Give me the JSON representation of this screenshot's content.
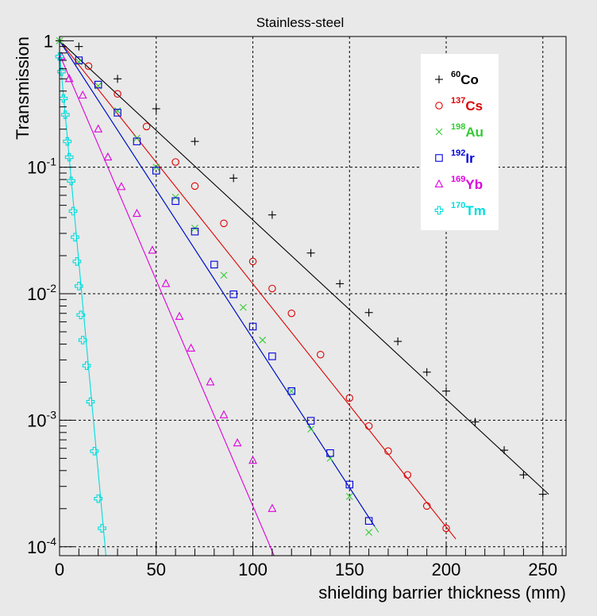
{
  "chart_data": {
    "type": "scatter",
    "title": "Stainless-steel",
    "xlabel": "shielding barrier thickness (mm)",
    "ylabel": "Transmission",
    "xlim": [
      0,
      262
    ],
    "ylim": [
      8.5e-05,
      1.08
    ],
    "y_scale": "log",
    "grid": true,
    "legend_position": "top-right",
    "x_ticks": [
      0,
      50,
      100,
      150,
      200,
      250
    ],
    "y_ticks": [
      {
        "value": 1,
        "label": "1",
        "base": "",
        "exp": ""
      },
      {
        "value": 0.1,
        "label": "",
        "base": "10",
        "exp": "-1"
      },
      {
        "value": 0.01,
        "label": "",
        "base": "10",
        "exp": "-2"
      },
      {
        "value": 0.001,
        "label": "",
        "base": "10",
        "exp": "-3"
      },
      {
        "value": 0.0001,
        "label": "",
        "base": "10",
        "exp": "-4"
      }
    ],
    "series": [
      {
        "name": "Co",
        "mass": "60",
        "color": "#000000",
        "marker": "plus",
        "x": [
          0,
          10,
          30,
          50,
          70,
          90,
          110,
          130,
          145,
          160,
          175,
          190,
          200,
          215,
          230,
          240,
          250
        ],
        "y": [
          1,
          0.9,
          0.5,
          0.29,
          0.16,
          0.082,
          0.042,
          0.021,
          0.012,
          0.0071,
          0.0042,
          0.0024,
          0.0017,
          0.00097,
          0.00058,
          0.00037,
          0.00026
        ],
        "fit_x": [
          0,
          253
        ],
        "fit_y": [
          1.0,
          0.00026
        ]
      },
      {
        "name": "Cs",
        "mass": "137",
        "color": "#dd0000",
        "marker": "circle",
        "x": [
          15,
          30,
          45,
          60,
          70,
          85,
          100,
          110,
          120,
          135,
          150,
          160,
          170,
          180,
          190,
          200
        ],
        "y": [
          0.63,
          0.38,
          0.21,
          0.11,
          0.071,
          0.036,
          0.018,
          0.011,
          0.007,
          0.0033,
          0.0015,
          0.0009,
          0.00057,
          0.00037,
          0.00021,
          0.00014
        ],
        "fit_x": [
          0,
          205
        ],
        "fit_y": [
          1.0,
          0.000115
        ]
      },
      {
        "name": "Au",
        "mass": "198",
        "color": "#33cc33",
        "marker": "cross",
        "x": [
          0,
          10,
          20,
          30,
          40,
          50,
          60,
          70,
          85,
          95,
          105,
          120,
          130,
          140,
          150,
          160
        ],
        "y": [
          1,
          0.68,
          0.44,
          0.28,
          0.17,
          0.1,
          0.058,
          0.033,
          0.014,
          0.0078,
          0.0043,
          0.0017,
          0.00085,
          0.0005,
          0.00025,
          0.00013
        ],
        "fit_x": [
          0,
          165
        ],
        "fit_y": [
          1.0,
          0.00013
        ]
      },
      {
        "name": "Ir",
        "mass": "192",
        "color": "#0000dd",
        "marker": "square",
        "x": [
          10,
          20,
          30,
          40,
          50,
          60,
          70,
          80,
          90,
          100,
          110,
          120,
          130,
          140,
          150,
          160
        ],
        "y": [
          0.7,
          0.45,
          0.27,
          0.16,
          0.094,
          0.054,
          0.031,
          0.017,
          0.0099,
          0.0055,
          0.0032,
          0.0017,
          0.00099,
          0.00055,
          0.00031,
          0.00016
        ],
        "fit_x": [
          0,
          163
        ],
        "fit_y": [
          1.0,
          0.000145
        ]
      },
      {
        "name": "Yb",
        "mass": "169",
        "color": "#dd00dd",
        "marker": "triangle",
        "x": [
          1,
          5,
          12,
          20,
          25,
          32,
          40,
          48,
          55,
          62,
          68,
          78,
          85,
          92,
          100,
          110
        ],
        "y": [
          0.75,
          0.5,
          0.37,
          0.2,
          0.12,
          0.07,
          0.043,
          0.022,
          0.012,
          0.0066,
          0.0037,
          0.002,
          0.0011,
          0.00066,
          0.00048,
          0.0002
        ],
        "fit_x": [
          0,
          111
        ],
        "fit_y": [
          0.78,
          8.5e-05
        ]
      },
      {
        "name": "Tm",
        "mass": "170",
        "color": "#00dddd",
        "marker": "thickplus",
        "x": [
          0,
          1,
          2,
          3,
          4,
          5,
          6,
          7,
          8,
          9,
          10,
          11,
          12,
          14,
          16,
          18,
          20,
          22
        ],
        "y": [
          0.75,
          0.57,
          0.35,
          0.26,
          0.16,
          0.12,
          0.078,
          0.045,
          0.028,
          0.018,
          0.0115,
          0.0068,
          0.0043,
          0.0027,
          0.0014,
          0.00057,
          0.00024,
          0.00014
        ],
        "fit_x": [
          0,
          24
        ],
        "fit_y": [
          0.8,
          8.5e-05
        ]
      }
    ]
  }
}
